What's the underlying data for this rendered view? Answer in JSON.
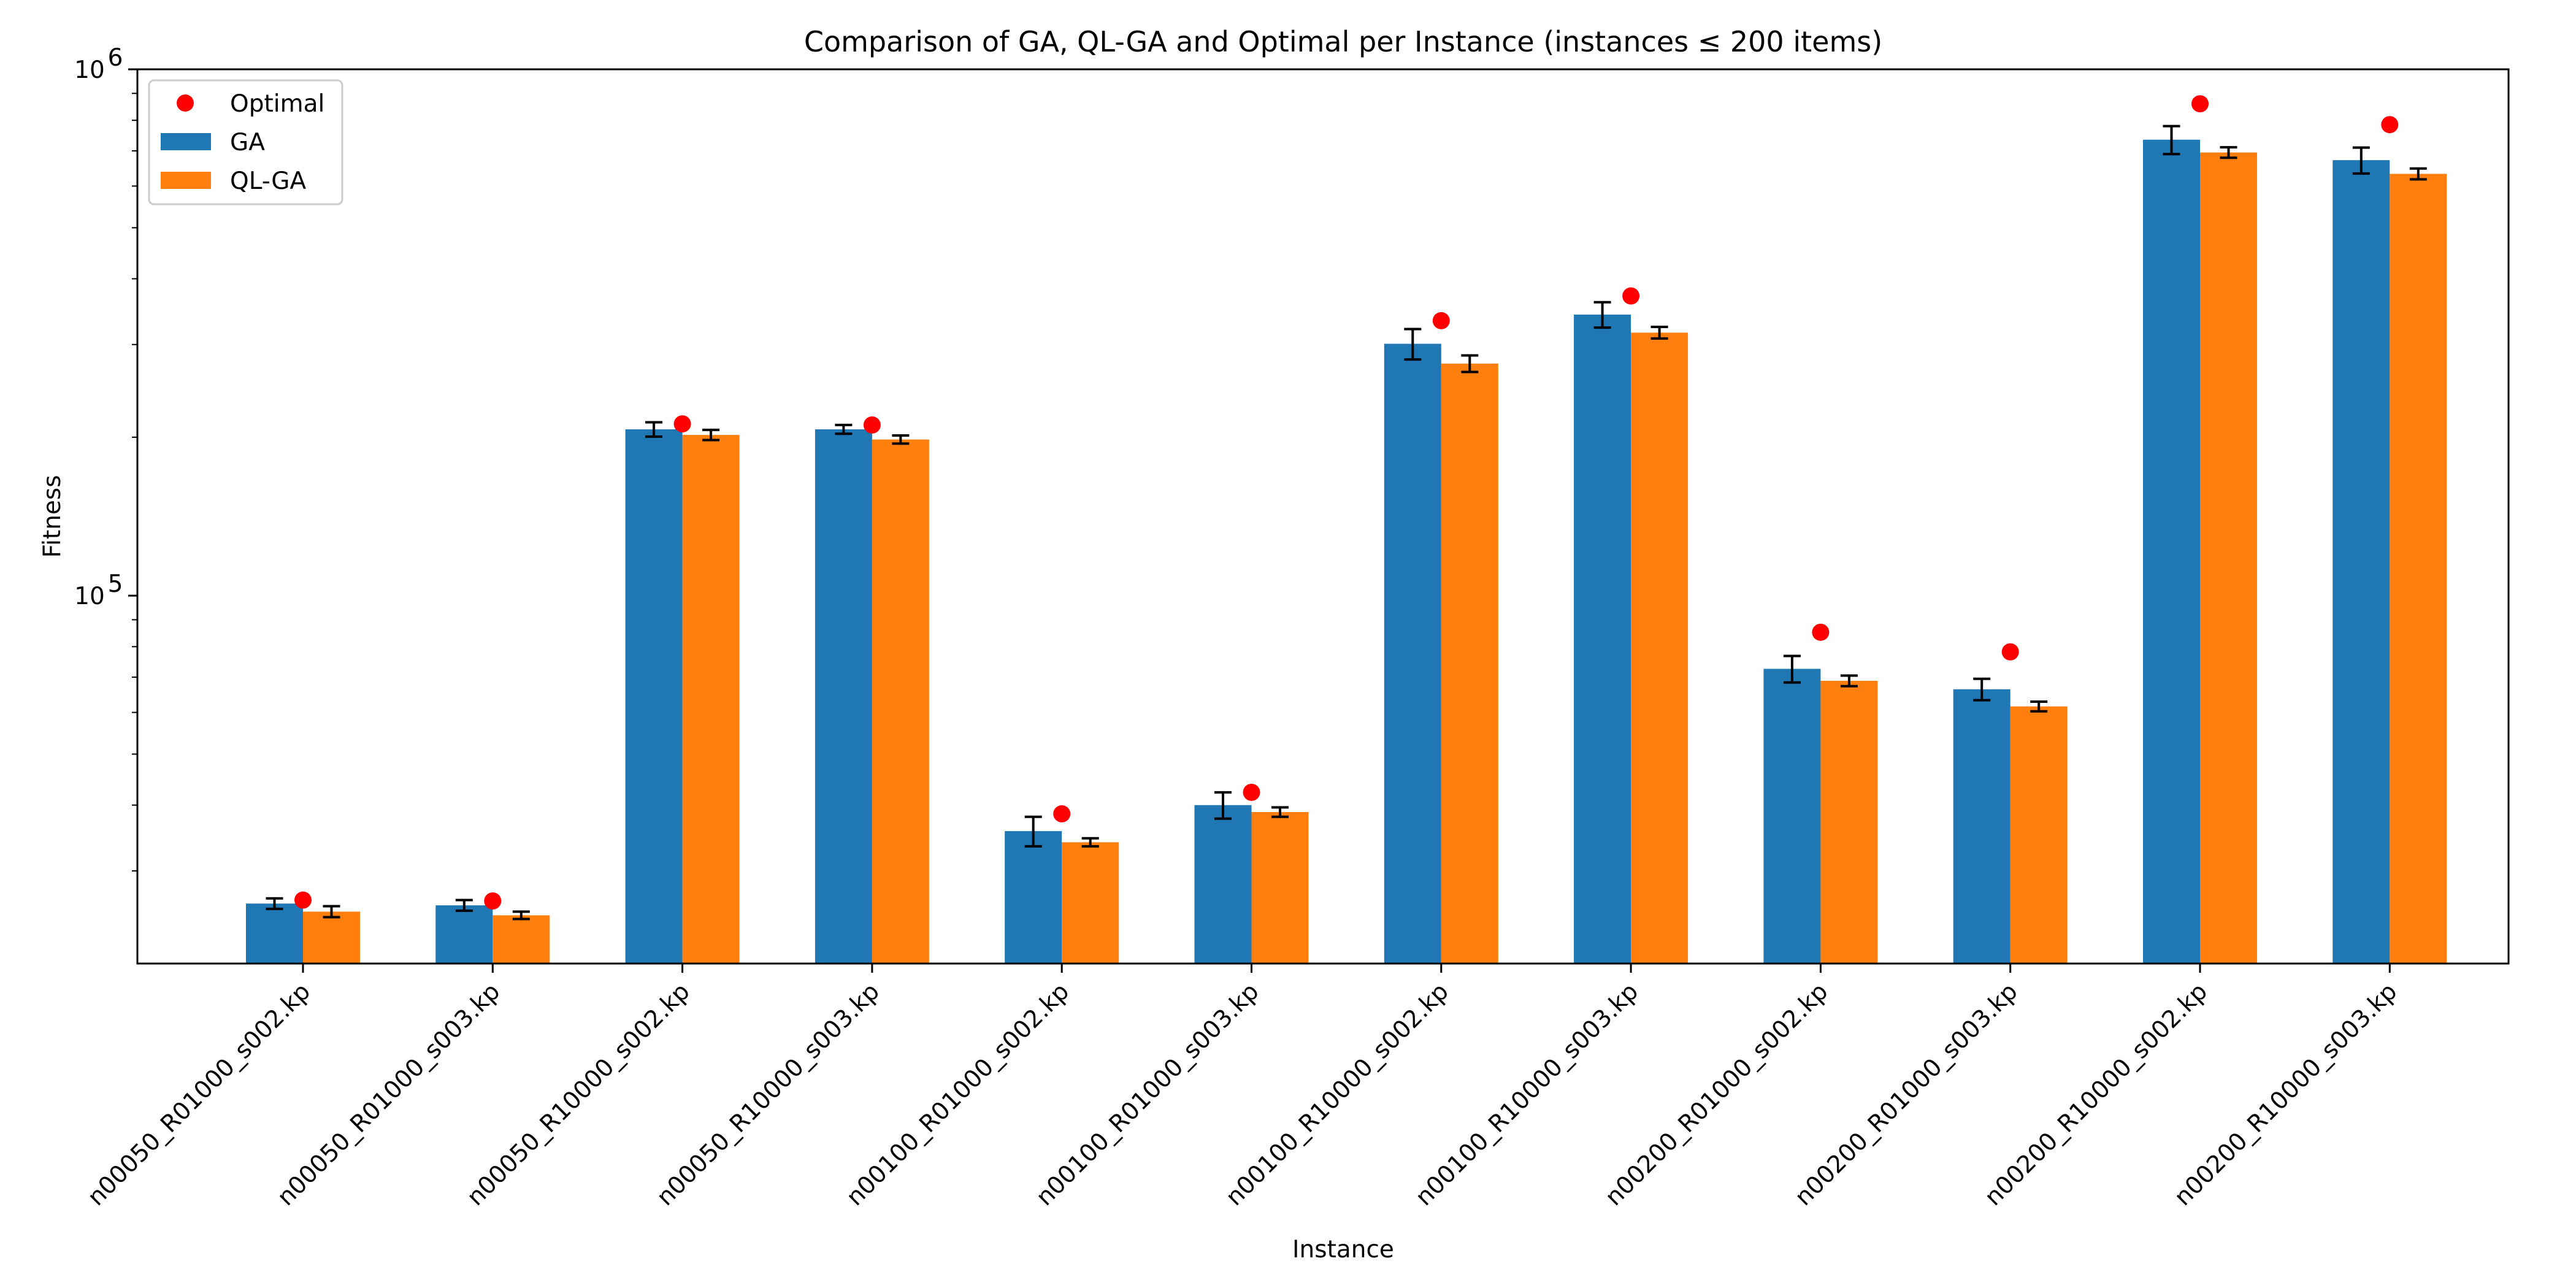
{
  "chart_data": {
    "type": "bar",
    "title": "Comparison of GA, QL-GA and Optimal per Instance (instances ≤ 200 items)",
    "xlabel": "Instance",
    "ylabel": "Fitness",
    "yscale": "log",
    "ylim": [
      20000,
      1000000
    ],
    "y_ticks": [
      {
        "base": "10",
        "exp": "5",
        "value": 100000
      },
      {
        "base": "10",
        "exp": "6",
        "value": 1000000
      }
    ],
    "grid": false,
    "legend_position": "top-left",
    "categories": [
      "n00050_R01000_s002.kp",
      "n00050_R01000_s003.kp",
      "n00050_R10000_s002.kp",
      "n00050_R10000_s003.kp",
      "n00100_R01000_s002.kp",
      "n00100_R01000_s003.kp",
      "n00100_R10000_s002.kp",
      "n00100_R10000_s003.kp",
      "n00200_R01000_s002.kp",
      "n00200_R01000_s003.kp",
      "n00200_R10000_s002.kp",
      "n00200_R10000_s003.kp"
    ],
    "series": [
      {
        "name": "GA",
        "kind": "bar",
        "color": "#1f77b4",
        "values": [
          26000,
          25800,
          207000,
          207000,
          35700,
          40000,
          301000,
          342000,
          72600,
          66400,
          735000,
          672000
        ],
        "err": [
          600,
          600,
          6500,
          4000,
          2300,
          2300,
          20000,
          19000,
          4200,
          3100,
          45000,
          38000
        ]
      },
      {
        "name": "QL-GA",
        "kind": "bar",
        "color": "#ff7f0e",
        "values": [
          25100,
          24700,
          202000,
          198000,
          34000,
          38800,
          276000,
          316000,
          68900,
          61600,
          695000,
          633000
        ],
        "err": [
          600,
          400,
          4500,
          3500,
          600,
          800,
          10000,
          8000,
          1600,
          1300,
          16000,
          15000
        ]
      },
      {
        "name": "Optimal",
        "kind": "point",
        "color": "#ff0000",
        "values": [
          26400,
          26300,
          212000,
          211000,
          38500,
          42300,
          333000,
          371000,
          85200,
          78200,
          860000,
          785000
        ]
      }
    ]
  }
}
